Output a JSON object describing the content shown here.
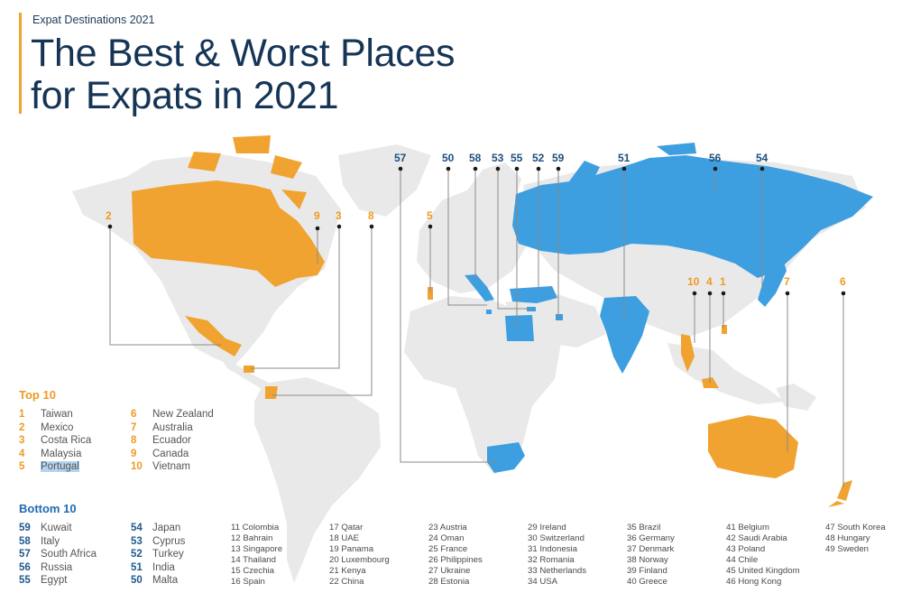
{
  "header": {
    "subtitle": "Expat Destinations 2021",
    "title_line1": "The Best & Worst Places",
    "title_line2": "for Expats in 2021"
  },
  "colors": {
    "top_accent": "#f0a330",
    "bottom_accent": "#3d9ee0",
    "land": "#e8e8e8",
    "title": "#163556"
  },
  "map_labels": {
    "top": [
      "2",
      "9",
      "3",
      "8",
      "5",
      "10",
      "4",
      "1",
      "7",
      "6"
    ],
    "bottom": [
      "57",
      "50",
      "58",
      "53",
      "55",
      "52",
      "59",
      "51",
      "56",
      "54"
    ]
  },
  "legend": {
    "top_heading": "Top 10",
    "bottom_heading": "Bottom 10",
    "top_col1": [
      {
        "num": "1",
        "name": "Taiwan"
      },
      {
        "num": "2",
        "name": "Mexico"
      },
      {
        "num": "3",
        "name": "Costa Rica"
      },
      {
        "num": "4",
        "name": "Malaysia"
      },
      {
        "num": "5",
        "name": "Portugal"
      }
    ],
    "top_col2": [
      {
        "num": "6",
        "name": "New Zealand"
      },
      {
        "num": "7",
        "name": "Australia"
      },
      {
        "num": "8",
        "name": "Ecuador"
      },
      {
        "num": "9",
        "name": "Canada"
      },
      {
        "num": "10",
        "name": "Vietnam"
      }
    ],
    "bottom_col1": [
      {
        "num": "59",
        "name": "Kuwait"
      },
      {
        "num": "58",
        "name": "Italy"
      },
      {
        "num": "57",
        "name": "South Africa"
      },
      {
        "num": "56",
        "name": "Russia"
      },
      {
        "num": "55",
        "name": "Egypt"
      }
    ],
    "bottom_col2": [
      {
        "num": "54",
        "name": "Japan"
      },
      {
        "num": "53",
        "name": "Cyprus"
      },
      {
        "num": "52",
        "name": "Turkey"
      },
      {
        "num": "51",
        "name": "India"
      },
      {
        "num": "50",
        "name": "Malta"
      }
    ],
    "middle": [
      [
        "11 Colombia",
        "12 Bahrain",
        "13 Singapore",
        "14 Thailand",
        "15 Czechia",
        "16 Spain"
      ],
      [
        "17 Qatar",
        "18 UAE",
        "19 Panama",
        "20 Luxembourg",
        "21 Kenya",
        "22 China"
      ],
      [
        "23 Austria",
        "24 Oman",
        "25 France",
        "26 Philippines",
        "27 Ukraine",
        "28 Estonia"
      ],
      [
        "29 Ireland",
        "30 Switzerland",
        "31 Indonesia",
        "32 Romania",
        "33 Netherlands",
        "34 USA"
      ],
      [
        "35 Brazil",
        "36 Germany",
        "37 Denmark",
        "38 Norway",
        "39 Finland",
        "40 Greece"
      ],
      [
        "41 Belgium",
        "42 Saudi Arabia",
        "43 Poland",
        "44 Chile",
        "45 United Kingdom",
        "46 Hong Kong"
      ],
      [
        "47 South Korea",
        "48 Hungary",
        "49 Sweden"
      ]
    ]
  }
}
